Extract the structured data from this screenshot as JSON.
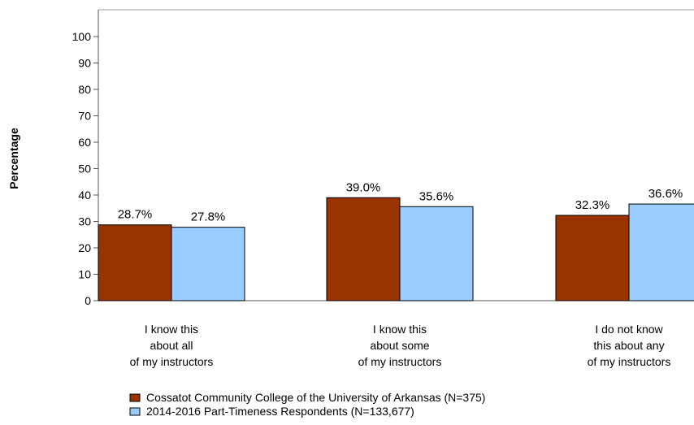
{
  "chart_data": {
    "type": "bar",
    "title": "",
    "xlabel": "",
    "ylabel": "Percentage",
    "ylim": [
      0,
      100
    ],
    "yticks": [
      0,
      10,
      20,
      30,
      40,
      50,
      60,
      70,
      80,
      90,
      100
    ],
    "grid": false,
    "legend_position": "bottom",
    "categories": [
      [
        "I know this",
        "about all",
        "of my instructors"
      ],
      [
        "I know this",
        "about some",
        "of my instructors"
      ],
      [
        "I do not know",
        "this about any",
        "of my instructors"
      ]
    ],
    "series": [
      {
        "name": "Cossatot Community College of the University of Arkansas (N=375)",
        "color": "#993300",
        "values": [
          28.7,
          39.0,
          32.3
        ],
        "labels": [
          "28.7%",
          "39.0%",
          "32.3%"
        ]
      },
      {
        "name": "2014-2016 Part-Timeness Respondents (N=133,677)",
        "color": "#99CCFF",
        "values": [
          27.8,
          35.6,
          36.6
        ],
        "labels": [
          "27.8%",
          "35.6%",
          "36.6%"
        ]
      }
    ]
  }
}
